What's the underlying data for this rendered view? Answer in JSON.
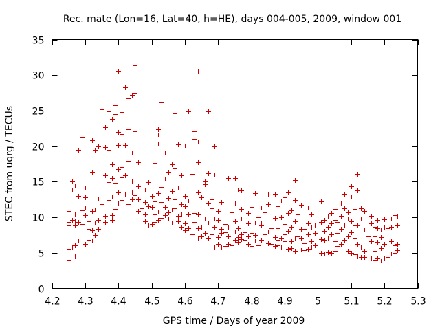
{
  "chart_data": {
    "type": "scatter",
    "title": "Rec. mate (Lon=16, Lat=40, h=HE), days 004-005, 2009, window 001",
    "xlabel": "GPS time / Days of year 2009",
    "ylabel": "STEC from uqrg / TECUs",
    "xlim": [
      4.2,
      5.3
    ],
    "ylim": [
      0,
      35
    ],
    "x_ticks": [
      "4.2",
      "4.3",
      "4.4",
      "4.5",
      "4.6",
      "4.7",
      "4.8",
      "4.9",
      "5",
      "5.1",
      "5.2",
      "5.3"
    ],
    "y_ticks": [
      "0",
      "5",
      "10",
      "15",
      "20",
      "25",
      "30",
      "35"
    ],
    "marker": "+",
    "color": "#cc0000",
    "grid": false,
    "points": [
      [
        4.25,
        4.0
      ],
      [
        4.25,
        5.6
      ],
      [
        4.25,
        8.8
      ],
      [
        4.25,
        9.3
      ],
      [
        4.25,
        10.9
      ],
      [
        4.26,
        5.8
      ],
      [
        4.26,
        9.6
      ],
      [
        4.26,
        13.9
      ],
      [
        4.26,
        15.0
      ],
      [
        4.27,
        4.6
      ],
      [
        4.27,
        6.0
      ],
      [
        4.27,
        8.8
      ],
      [
        4.27,
        9.5
      ],
      [
        4.27,
        10.5
      ],
      [
        4.27,
        14.5
      ],
      [
        4.28,
        6.7
      ],
      [
        4.28,
        9.3
      ],
      [
        4.28,
        13.0
      ],
      [
        4.28,
        19.5
      ],
      [
        4.29,
        6.4
      ],
      [
        4.29,
        7.0
      ],
      [
        4.29,
        9.0
      ],
      [
        4.29,
        11.0
      ],
      [
        4.29,
        21.2
      ],
      [
        4.3,
        6.2
      ],
      [
        4.3,
        10.3
      ],
      [
        4.3,
        11.4
      ],
      [
        4.3,
        12.8
      ],
      [
        4.3,
        14.2
      ],
      [
        4.31,
        6.8
      ],
      [
        4.31,
        8.4
      ],
      [
        4.31,
        9.4
      ],
      [
        4.31,
        19.8
      ],
      [
        4.32,
        6.7
      ],
      [
        4.32,
        8.2
      ],
      [
        4.32,
        10.9
      ],
      [
        4.32,
        16.4
      ],
      [
        4.32,
        20.8
      ],
      [
        4.33,
        7.5
      ],
      [
        4.33,
        9.2
      ],
      [
        4.33,
        11.1
      ],
      [
        4.33,
        19.5
      ],
      [
        4.34,
        8.4
      ],
      [
        4.34,
        9.6
      ],
      [
        4.34,
        12.6
      ],
      [
        4.34,
        20.0
      ],
      [
        4.35,
        8.9
      ],
      [
        4.35,
        9.8
      ],
      [
        4.35,
        11.8
      ],
      [
        4.35,
        18.8
      ],
      [
        4.35,
        23.2
      ],
      [
        4.35,
        25.2
      ],
      [
        4.36,
        9.3
      ],
      [
        4.36,
        10.2
      ],
      [
        4.36,
        15.9
      ],
      [
        4.36,
        19.9
      ],
      [
        4.36,
        22.7
      ],
      [
        4.37,
        9.8
      ],
      [
        4.37,
        12.4
      ],
      [
        4.37,
        14.9
      ],
      [
        4.37,
        19.5
      ],
      [
        4.37,
        24.9
      ],
      [
        4.38,
        9.6
      ],
      [
        4.38,
        10.3
      ],
      [
        4.38,
        12.9
      ],
      [
        4.38,
        15.5
      ],
      [
        4.38,
        17.5
      ],
      [
        4.38,
        23.8
      ],
      [
        4.39,
        11.2
      ],
      [
        4.39,
        12.6
      ],
      [
        4.39,
        14.8
      ],
      [
        4.39,
        17.8
      ],
      [
        4.39,
        24.5
      ],
      [
        4.39,
        25.8
      ],
      [
        4.4,
        12.0
      ],
      [
        4.4,
        13.5
      ],
      [
        4.4,
        16.8
      ],
      [
        4.4,
        20.2
      ],
      [
        4.4,
        22.0
      ],
      [
        4.4,
        30.6
      ],
      [
        4.41,
        12.4
      ],
      [
        4.41,
        15.6
      ],
      [
        4.41,
        17.1
      ],
      [
        4.41,
        21.7
      ],
      [
        4.41,
        24.8
      ],
      [
        4.42,
        13.2
      ],
      [
        4.42,
        15.9
      ],
      [
        4.42,
        20.2
      ],
      [
        4.42,
        28.3
      ],
      [
        4.43,
        11.8
      ],
      [
        4.43,
        14.5
      ],
      [
        4.43,
        17.9
      ],
      [
        4.43,
        22.4
      ],
      [
        4.43,
        26.7
      ],
      [
        4.44,
        12.5
      ],
      [
        4.44,
        13.6
      ],
      [
        4.44,
        15.1
      ],
      [
        4.44,
        19.1
      ],
      [
        4.44,
        27.2
      ],
      [
        4.45,
        10.8
      ],
      [
        4.45,
        13.1
      ],
      [
        4.45,
        14.2
      ],
      [
        4.45,
        22.1
      ],
      [
        4.45,
        27.5
      ],
      [
        4.45,
        31.4
      ],
      [
        4.46,
        10.9
      ],
      [
        4.46,
        12.5
      ],
      [
        4.46,
        14.4
      ],
      [
        4.46,
        17.7
      ],
      [
        4.47,
        9.2
      ],
      [
        4.47,
        11.3
      ],
      [
        4.47,
        14.5
      ],
      [
        4.47,
        19.4
      ],
      [
        4.48,
        9.4
      ],
      [
        4.48,
        10.4
      ],
      [
        4.48,
        12.1
      ],
      [
        4.48,
        13.9
      ],
      [
        4.49,
        8.9
      ],
      [
        4.49,
        11.6
      ],
      [
        4.49,
        14.9
      ],
      [
        4.5,
        9.0
      ],
      [
        4.5,
        11.5
      ],
      [
        4.5,
        13.0
      ],
      [
        4.51,
        9.3
      ],
      [
        4.51,
        10.4
      ],
      [
        4.51,
        12.2
      ],
      [
        4.51,
        17.6
      ],
      [
        4.51,
        27.8
      ],
      [
        4.52,
        9.6
      ],
      [
        4.52,
        10.8
      ],
      [
        4.52,
        13.4
      ],
      [
        4.52,
        21.6
      ],
      [
        4.52,
        22.4
      ],
      [
        4.52,
        20.4
      ],
      [
        4.53,
        9.9
      ],
      [
        4.53,
        12.1
      ],
      [
        4.53,
        14.3
      ],
      [
        4.53,
        25.3
      ],
      [
        4.53,
        26.2
      ],
      [
        4.54,
        10.3
      ],
      [
        4.54,
        11.5
      ],
      [
        4.54,
        15.4
      ],
      [
        4.54,
        19.1
      ],
      [
        4.55,
        9.8
      ],
      [
        4.55,
        10.7
      ],
      [
        4.55,
        12.7
      ],
      [
        4.55,
        16.4
      ],
      [
        4.56,
        9.2
      ],
      [
        4.56,
        11.1
      ],
      [
        4.56,
        13.7
      ],
      [
        4.56,
        17.5
      ],
      [
        4.57,
        8.6
      ],
      [
        4.57,
        11.3
      ],
      [
        4.57,
        12.5
      ],
      [
        4.57,
        16.9
      ],
      [
        4.57,
        24.6
      ],
      [
        4.58,
        9.4
      ],
      [
        4.58,
        10.2
      ],
      [
        4.58,
        14.2
      ],
      [
        4.58,
        20.3
      ],
      [
        4.59,
        8.7
      ],
      [
        4.59,
        10.5
      ],
      [
        4.59,
        11.8
      ],
      [
        4.59,
        15.9
      ],
      [
        4.6,
        8.2
      ],
      [
        4.6,
        9.1
      ],
      [
        4.6,
        11.6
      ],
      [
        4.6,
        13.0
      ],
      [
        4.6,
        20.1
      ],
      [
        4.61,
        8.5
      ],
      [
        4.61,
        10.4
      ],
      [
        4.61,
        12.3
      ],
      [
        4.61,
        24.9
      ],
      [
        4.62,
        7.6
      ],
      [
        4.62,
        9.5
      ],
      [
        4.62,
        11.1
      ],
      [
        4.62,
        16.1
      ],
      [
        4.63,
        7.4
      ],
      [
        4.63,
        9.3
      ],
      [
        4.63,
        10.6
      ],
      [
        4.63,
        21.0
      ],
      [
        4.63,
        22.1
      ],
      [
        4.63,
        33.0
      ],
      [
        4.64,
        7.0
      ],
      [
        4.64,
        8.5
      ],
      [
        4.64,
        10.4
      ],
      [
        4.64,
        13.5
      ],
      [
        4.64,
        17.7
      ],
      [
        4.64,
        20.6
      ],
      [
        4.64,
        30.5
      ],
      [
        4.65,
        7.3
      ],
      [
        4.65,
        8.6
      ],
      [
        4.65,
        12.8
      ],
      [
        4.66,
        7.8
      ],
      [
        4.66,
        9.8
      ],
      [
        4.66,
        14.6
      ],
      [
        4.66,
        15.0
      ],
      [
        4.67,
        7.1
      ],
      [
        4.67,
        9.2
      ],
      [
        4.67,
        11.9
      ],
      [
        4.67,
        16.2
      ],
      [
        4.67,
        24.9
      ],
      [
        4.68,
        7.6
      ],
      [
        4.68,
        8.6
      ],
      [
        4.68,
        11.3
      ],
      [
        4.68,
        12.5
      ],
      [
        4.69,
        5.8
      ],
      [
        4.69,
        8.7
      ],
      [
        4.69,
        9.8
      ],
      [
        4.69,
        20.0
      ],
      [
        4.69,
        16.0
      ],
      [
        4.7,
        6.2
      ],
      [
        4.7,
        7.2
      ],
      [
        4.7,
        9.6
      ],
      [
        4.7,
        10.9
      ],
      [
        4.71,
        5.8
      ],
      [
        4.71,
        7.8
      ],
      [
        4.71,
        8.4
      ],
      [
        4.71,
        12.1
      ],
      [
        4.72,
        5.9
      ],
      [
        4.72,
        7.9
      ],
      [
        4.72,
        9.0
      ],
      [
        4.72,
        10.1
      ],
      [
        4.73,
        6.2
      ],
      [
        4.73,
        7.3
      ],
      [
        4.73,
        8.6
      ],
      [
        4.73,
        15.5
      ],
      [
        4.74,
        6.0
      ],
      [
        4.74,
        8.3
      ],
      [
        4.74,
        10.1
      ],
      [
        4.74,
        10.7
      ],
      [
        4.75,
        6.8
      ],
      [
        4.75,
        8.0
      ],
      [
        4.75,
        9.4
      ],
      [
        4.75,
        12.0
      ],
      [
        4.75,
        15.5
      ],
      [
        4.76,
        6.5
      ],
      [
        4.76,
        7.2
      ],
      [
        4.76,
        8.5
      ],
      [
        4.76,
        13.9
      ],
      [
        4.77,
        6.9
      ],
      [
        4.77,
        7.6
      ],
      [
        4.77,
        9.8
      ],
      [
        4.77,
        11.2
      ],
      [
        4.77,
        13.8
      ],
      [
        4.78,
        6.8
      ],
      [
        4.78,
        7.9
      ],
      [
        4.78,
        10.1
      ],
      [
        4.78,
        17.0
      ],
      [
        4.78,
        18.2
      ],
      [
        4.79,
        6.2
      ],
      [
        4.79,
        7.3
      ],
      [
        4.79,
        9.1
      ],
      [
        4.79,
        10.6
      ],
      [
        4.8,
        5.9
      ],
      [
        4.8,
        7.8
      ],
      [
        4.8,
        8.6
      ],
      [
        4.8,
        11.5
      ],
      [
        4.81,
        6.7
      ],
      [
        4.81,
        7.5
      ],
      [
        4.81,
        9.2
      ],
      [
        4.81,
        13.4
      ],
      [
        4.82,
        6.0
      ],
      [
        4.82,
        7.7
      ],
      [
        4.82,
        10.0
      ],
      [
        4.82,
        12.6
      ],
      [
        4.83,
        6.8
      ],
      [
        4.83,
        8.8
      ],
      [
        4.83,
        9.2
      ],
      [
        4.83,
        11.4
      ],
      [
        4.84,
        6.1
      ],
      [
        4.84,
        7.6
      ],
      [
        4.84,
        8.3
      ],
      [
        4.84,
        10.7
      ],
      [
        4.85,
        6.3
      ],
      [
        4.85,
        8.0
      ],
      [
        4.85,
        11.8
      ],
      [
        4.85,
        13.2
      ],
      [
        4.86,
        6.2
      ],
      [
        4.86,
        8.5
      ],
      [
        4.86,
        10.8
      ],
      [
        4.86,
        11.4
      ],
      [
        4.87,
        5.9
      ],
      [
        4.87,
        7.2
      ],
      [
        4.87,
        9.9
      ],
      [
        4.87,
        13.3
      ],
      [
        4.88,
        6.0
      ],
      [
        4.88,
        6.8
      ],
      [
        4.88,
        8.5
      ],
      [
        4.88,
        11.6
      ],
      [
        4.89,
        5.8
      ],
      [
        4.89,
        7.1
      ],
      [
        4.89,
        10.0
      ],
      [
        4.89,
        12.3
      ],
      [
        4.9,
        6.6
      ],
      [
        4.9,
        7.6
      ],
      [
        4.9,
        9.0
      ],
      [
        4.9,
        12.8
      ],
      [
        4.91,
        5.6
      ],
      [
        4.91,
        8.1
      ],
      [
        4.91,
        10.6
      ],
      [
        4.91,
        13.5
      ],
      [
        4.92,
        5.7
      ],
      [
        4.92,
        6.6
      ],
      [
        4.92,
        8.7
      ],
      [
        4.92,
        11.0
      ],
      [
        4.93,
        5.3
      ],
      [
        4.93,
        7.0
      ],
      [
        4.93,
        9.4
      ],
      [
        4.93,
        12.4
      ],
      [
        4.93,
        15.2
      ],
      [
        4.94,
        5.2
      ],
      [
        4.94,
        7.3
      ],
      [
        4.94,
        10.4
      ],
      [
        4.94,
        16.3
      ],
      [
        4.95,
        5.5
      ],
      [
        4.95,
        7.1
      ],
      [
        4.95,
        8.4
      ],
      [
        4.95,
        11.7
      ],
      [
        4.96,
        5.4
      ],
      [
        4.96,
        6.3
      ],
      [
        4.96,
        8.4
      ],
      [
        4.96,
        12.6
      ],
      [
        4.97,
        5.6
      ],
      [
        4.97,
        7.6
      ],
      [
        4.97,
        9.1
      ],
      [
        4.97,
        11.4
      ],
      [
        4.98,
        5.8
      ],
      [
        4.98,
        6.6
      ],
      [
        4.98,
        8.6
      ],
      [
        4.98,
        10.4
      ],
      [
        4.99,
        6.0
      ],
      [
        4.99,
        7.8
      ],
      [
        4.99,
        8.9
      ],
      [
        5.01,
        5.0
      ],
      [
        5.01,
        6.9
      ],
      [
        5.01,
        9.3
      ],
      [
        5.01,
        12.2
      ],
      [
        5.02,
        4.9
      ],
      [
        5.02,
        6.8
      ],
      [
        5.02,
        8.1
      ],
      [
        5.02,
        9.6
      ],
      [
        5.03,
        5.1
      ],
      [
        5.03,
        7.0
      ],
      [
        5.03,
        8.7
      ],
      [
        5.03,
        10.1
      ],
      [
        5.04,
        5.0
      ],
      [
        5.04,
        7.6
      ],
      [
        5.04,
        9.1
      ],
      [
        5.04,
        10.6
      ],
      [
        5.05,
        5.3
      ],
      [
        5.05,
        6.6
      ],
      [
        5.05,
        9.6
      ],
      [
        5.05,
        11.2
      ],
      [
        5.05,
        12.6
      ],
      [
        5.06,
        5.9
      ],
      [
        5.06,
        7.8
      ],
      [
        5.06,
        9.3
      ],
      [
        5.06,
        11.4
      ],
      [
        5.07,
        6.2
      ],
      [
        5.07,
        8.4
      ],
      [
        5.07,
        10.2
      ],
      [
        5.07,
        12.0
      ],
      [
        5.08,
        6.8
      ],
      [
        5.08,
        8.9
      ],
      [
        5.08,
        11.3
      ],
      [
        5.08,
        13.3
      ],
      [
        5.09,
        5.3
      ],
      [
        5.09,
        7.3
      ],
      [
        5.09,
        9.8
      ],
      [
        5.09,
        10.7
      ],
      [
        5.1,
        5.0
      ],
      [
        5.1,
        7.9
      ],
      [
        5.1,
        9.4
      ],
      [
        5.1,
        12.9
      ],
      [
        5.1,
        14.4
      ],
      [
        5.11,
        4.8
      ],
      [
        5.11,
        7.1
      ],
      [
        5.11,
        8.8
      ],
      [
        5.11,
        11.2
      ],
      [
        5.12,
        4.6
      ],
      [
        5.12,
        6.2
      ],
      [
        5.12,
        8.8
      ],
      [
        5.12,
        13.8
      ],
      [
        5.12,
        16.1
      ],
      [
        5.13,
        4.4
      ],
      [
        5.13,
        5.8
      ],
      [
        5.13,
        9.8
      ],
      [
        5.13,
        11.3
      ],
      [
        5.14,
        4.4
      ],
      [
        5.14,
        5.3
      ],
      [
        5.14,
        8.3
      ],
      [
        5.14,
        10.9
      ],
      [
        5.15,
        4.2
      ],
      [
        5.15,
        5.5
      ],
      [
        5.15,
        7.3
      ],
      [
        5.15,
        9.8
      ],
      [
        5.16,
        4.2
      ],
      [
        5.16,
        6.6
      ],
      [
        5.16,
        9.1
      ],
      [
        5.16,
        10.2
      ],
      [
        5.17,
        4.0
      ],
      [
        5.17,
        5.3
      ],
      [
        5.17,
        7.3
      ],
      [
        5.17,
        8.7
      ],
      [
        5.18,
        4.3
      ],
      [
        5.18,
        6.5
      ],
      [
        5.18,
        8.5
      ],
      [
        5.18,
        9.6
      ],
      [
        5.19,
        3.9
      ],
      [
        5.19,
        5.7
      ],
      [
        5.19,
        7.2
      ],
      [
        5.19,
        8.3
      ],
      [
        5.2,
        4.2
      ],
      [
        5.2,
        6.2
      ],
      [
        5.2,
        8.6
      ],
      [
        5.2,
        9.7
      ],
      [
        5.21,
        4.4
      ],
      [
        5.21,
        5.8
      ],
      [
        5.21,
        7.4
      ],
      [
        5.21,
        8.5
      ],
      [
        5.22,
        4.9
      ],
      [
        5.22,
        6.6
      ],
      [
        5.22,
        8.7
      ],
      [
        5.22,
        9.8
      ],
      [
        5.23,
        5.0
      ],
      [
        5.23,
        6.0
      ],
      [
        5.23,
        8.3
      ],
      [
        5.23,
        9.5
      ],
      [
        5.23,
        10.3
      ],
      [
        5.24,
        5.4
      ],
      [
        5.24,
        6.2
      ],
      [
        5.24,
        8.8
      ],
      [
        5.24,
        10.1
      ]
    ]
  }
}
